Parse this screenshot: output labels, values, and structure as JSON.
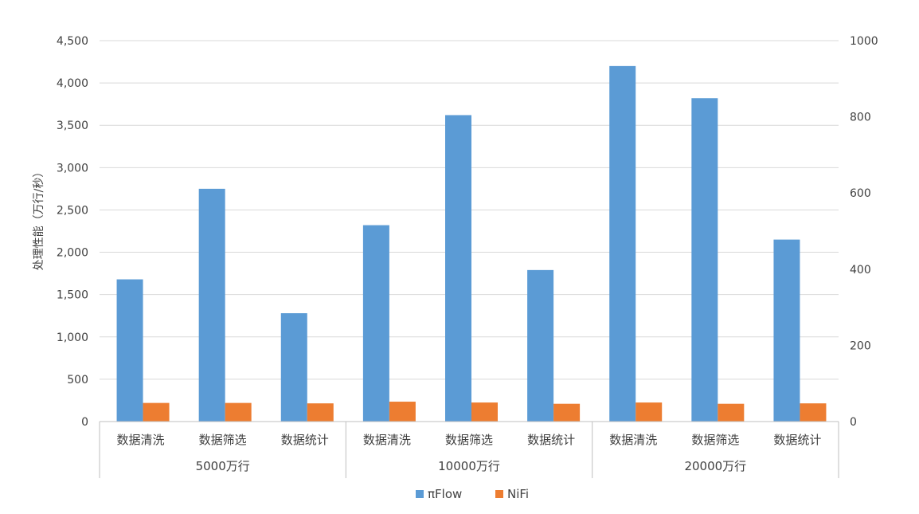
{
  "chart_data": {
    "type": "bar",
    "title": "",
    "ylabel": "处理性能（万行/秒）",
    "groups": [
      "5000万行",
      "10000万行",
      "20000万行"
    ],
    "categories": [
      "数据清洗",
      "数据筛选",
      "数据统计",
      "数据清洗",
      "数据筛选",
      "数据统计",
      "数据清洗",
      "数据筛选",
      "数据统计"
    ],
    "y_left": {
      "min": 0,
      "max": 4500,
      "ticks": [
        "0",
        "500",
        "1,000",
        "1,500",
        "2,000",
        "2,500",
        "3,000",
        "3,500",
        "4,000",
        "4,500"
      ]
    },
    "y_right": {
      "min": 0,
      "max": 1000,
      "ticks": [
        "0",
        "200",
        "400",
        "600",
        "800",
        "1000"
      ]
    },
    "series": [
      {
        "name": "πFlow",
        "color": "#5B9BD5",
        "axis": "left",
        "values": [
          1680,
          2750,
          1280,
          2320,
          3620,
          1790,
          4200,
          3820,
          2150
        ]
      },
      {
        "name": "NiFi",
        "color": "#ED7D31",
        "axis": "left",
        "values": [
          220,
          220,
          215,
          235,
          225,
          210,
          225,
          210,
          215
        ]
      }
    ],
    "grid": true,
    "legend": "bottom"
  }
}
